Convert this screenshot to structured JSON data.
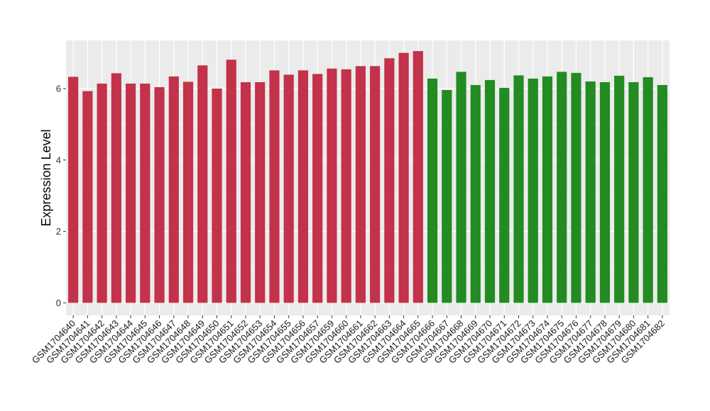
{
  "chart_data": {
    "type": "bar",
    "ylabel": "Expression Level",
    "xlabel": "",
    "ylim": [
      -0.35,
      7.35
    ],
    "yticks": [
      0,
      2,
      4,
      6
    ],
    "grid": true,
    "background": "#EBEBEB",
    "gridColor": "#FFFFFF",
    "groupColors": [
      "#C3314A",
      "#228B22"
    ],
    "categories": [
      "GSM1704640",
      "GSM1704641",
      "GSM1704642",
      "GSM1704643",
      "GSM1704644",
      "GSM1704645",
      "GSM1704646",
      "GSM1704647",
      "GSM1704648",
      "GSM1704649",
      "GSM1704650",
      "GSM1704651",
      "GSM1704652",
      "GSM1704653",
      "GSM1704654",
      "GSM1704655",
      "GSM1704656",
      "GSM1704657",
      "GSM1704659",
      "GSM1704660",
      "GSM1704661",
      "GSM1704662",
      "GSM1704663",
      "GSM1704664",
      "GSM1704665",
      "GSM1704666",
      "GSM1704667",
      "GSM1704668",
      "GSM1704669",
      "GSM1704670",
      "GSM1704671",
      "GSM1704672",
      "GSM1704673",
      "GSM1704674",
      "GSM1704675",
      "GSM1704676",
      "GSM1704677",
      "GSM1704678",
      "GSM1704679",
      "GSM1704680",
      "GSM1704681",
      "GSM1704682"
    ],
    "values": [
      6.33,
      5.93,
      6.14,
      6.43,
      6.14,
      6.14,
      6.04,
      6.34,
      6.19,
      6.65,
      6.0,
      6.81,
      6.18,
      6.18,
      6.51,
      6.39,
      6.51,
      6.41,
      6.56,
      6.54,
      6.63,
      6.63,
      6.85,
      7.0,
      7.05,
      6.28,
      5.96,
      6.47,
      6.1,
      6.24,
      6.02,
      6.37,
      6.28,
      6.34,
      6.47,
      6.44,
      6.2,
      6.18,
      6.36,
      6.18,
      6.32,
      6.1
    ],
    "groups": [
      0,
      0,
      0,
      0,
      0,
      0,
      0,
      0,
      0,
      0,
      0,
      0,
      0,
      0,
      0,
      0,
      0,
      0,
      0,
      0,
      0,
      0,
      0,
      0,
      0,
      1,
      1,
      1,
      1,
      1,
      1,
      1,
      1,
      1,
      1,
      1,
      1,
      1,
      1,
      1,
      1,
      1
    ]
  }
}
